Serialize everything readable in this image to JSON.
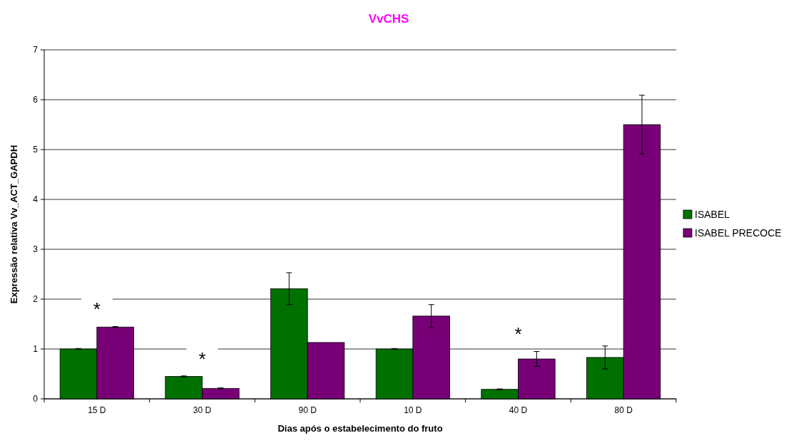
{
  "chart_data": {
    "type": "bar",
    "title": "VvCHS",
    "xlabel": "Dias após o estabelecimento do fruto",
    "ylabel": "Expressão relativa Vv_ACT_GAPDH",
    "categories": [
      "15 D",
      "30 D",
      "90 D",
      "10 D",
      "40 D",
      "80 D"
    ],
    "series": [
      {
        "name": "ISABEL",
        "color": "#007000",
        "values": [
          1.0,
          0.45,
          2.21,
          1.0,
          0.19,
          0.83
        ],
        "errors": [
          0.01,
          0.01,
          0.32,
          0.01,
          0.01,
          0.23
        ]
      },
      {
        "name": "ISABEL PRECOCE",
        "color": "#770077",
        "values": [
          1.44,
          0.21,
          1.13,
          1.66,
          0.8,
          5.5
        ],
        "errors": [
          0.01,
          0.01,
          null,
          0.23,
          0.15,
          0.59
        ]
      }
    ],
    "ylim": [
      0,
      7
    ],
    "yticks": [
      0,
      1,
      2,
      3,
      4,
      5,
      6,
      7
    ],
    "grid": "y",
    "legend": "right",
    "annotations": [
      "*",
      "*",
      "*"
    ]
  }
}
